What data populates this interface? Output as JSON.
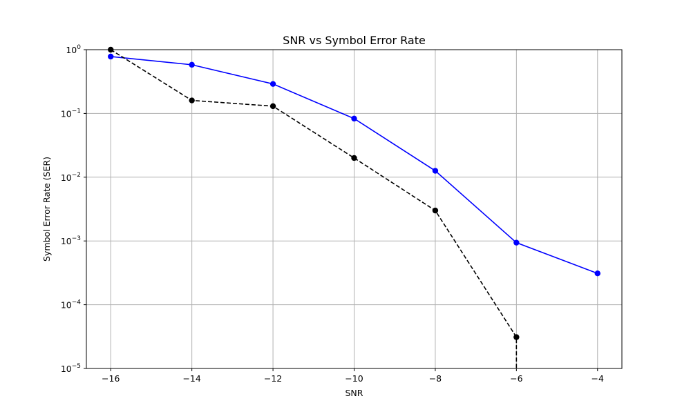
{
  "chart_data": {
    "type": "line",
    "title": "SNR vs Symbol Error Rate",
    "xlabel": "SNR",
    "ylabel": "Symbol Error Rate (SER)",
    "y_scale": "log",
    "xlim": [
      -16.6,
      -3.4
    ],
    "ylim": [
      1e-05,
      1
    ],
    "grid": true,
    "x_ticks": [
      -16,
      -14,
      -12,
      -10,
      -8,
      -6,
      -4
    ],
    "y_ticks": [
      {
        "base": "10",
        "exp": "0",
        "value": 1
      },
      {
        "base": "10",
        "exp": "−1",
        "value": 0.1
      },
      {
        "base": "10",
        "exp": "−2",
        "value": 0.01
      },
      {
        "base": "10",
        "exp": "−3",
        "value": 0.001
      },
      {
        "base": "10",
        "exp": "−4",
        "value": 0.0001
      },
      {
        "base": "10",
        "exp": "−5",
        "value": 1e-05
      }
    ],
    "series": [
      {
        "color": "#0000ff",
        "line_style": "solid",
        "marker": "circle",
        "x": [
          -16,
          -14,
          -12,
          -10,
          -8,
          -6,
          -4
        ],
        "y": [
          0.78,
          0.58,
          0.29,
          0.083,
          0.0126,
          0.00094,
          0.00031
        ]
      },
      {
        "color": "#000000",
        "line_style": "dashed",
        "marker": "circle",
        "x": [
          -16,
          -14,
          -12,
          -10,
          -8,
          -6,
          -6
        ],
        "y": [
          1.0,
          0.16,
          0.13,
          0.02,
          0.003,
          3.1e-05,
          1e-05
        ]
      }
    ]
  }
}
